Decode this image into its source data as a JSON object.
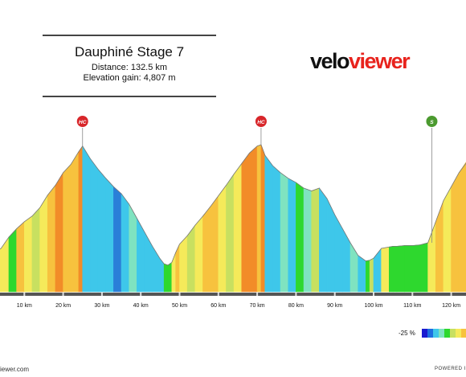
{
  "title": {
    "name": "Dauphiné Stage 7",
    "distance": "Distance: 132.5 km",
    "elevation": "Elevation gain: 4,807 m"
  },
  "logo": {
    "part1": "velo",
    "part2": "viewer"
  },
  "footer": {
    "left": "iewer.com",
    "right": "POWERED I"
  },
  "legend": {
    "min_label": "-25 %"
  },
  "colors": {
    "steep": "#f28c28",
    "hard": "#f7c23e",
    "moderate": "#f5ea5a",
    "easy": "#c8e060",
    "flat": "#2ed82e",
    "descent_light": "#7fe3c0",
    "descent": "#3ec7ea",
    "descent_steep": "#2a7fd8",
    "red": "#e02323"
  },
  "chart_data": {
    "type": "area",
    "xlabel": "",
    "ylabel": "",
    "xlim": [
      0,
      132.5
    ],
    "ticks": [
      "10 km",
      "20 km",
      "30 km",
      "40 km",
      "50 km",
      "60 km",
      "70 km",
      "80 km",
      "90 km",
      "100 km",
      "110 km",
      "120 km"
    ],
    "tick_values": [
      10,
      20,
      30,
      40,
      50,
      60,
      70,
      80,
      90,
      100,
      110,
      120
    ],
    "x": [
      0,
      4,
      6,
      8,
      10,
      12,
      14,
      16,
      18,
      20,
      22,
      24,
      25,
      27,
      29,
      31,
      33,
      35,
      37,
      39,
      41,
      43,
      45,
      46,
      47,
      48,
      49,
      50,
      52,
      54,
      56,
      58,
      60,
      62,
      64,
      66,
      68,
      70,
      71,
      72,
      74,
      76,
      78,
      80,
      82,
      84,
      86,
      88,
      90,
      92,
      94,
      96,
      98,
      99,
      100,
      102,
      104,
      105,
      106,
      108,
      110,
      112,
      114,
      116,
      118,
      120,
      122,
      124
    ],
    "elevation": [
      480,
      620,
      780,
      900,
      1000,
      1080,
      1200,
      1380,
      1520,
      1700,
      1820,
      2000,
      2080,
      1900,
      1750,
      1620,
      1500,
      1400,
      1250,
      1050,
      850,
      650,
      470,
      400,
      380,
      420,
      560,
      680,
      800,
      950,
      1080,
      1220,
      1370,
      1520,
      1680,
      1830,
      1980,
      2080,
      2100,
      1950,
      1800,
      1700,
      1620,
      1560,
      1480,
      1440,
      1480,
      1330,
      1100,
      900,
      700,
      520,
      440,
      450,
      480,
      620,
      640,
      650,
      650,
      660,
      660,
      670,
      700,
      1000,
      1300,
      1500,
      1700,
      1850
    ],
    "gradient_colors": [
      "moderate",
      "moderate",
      "flat",
      "hard",
      "moderate",
      "easy",
      "moderate",
      "hard",
      "steep",
      "hard",
      "hard",
      "steep",
      "descent",
      "descent",
      "descent",
      "descent",
      "descent_steep",
      "descent",
      "descent_light",
      "descent",
      "descent",
      "descent",
      "descent",
      "flat",
      "flat",
      "moderate",
      "hard",
      "moderate",
      "easy",
      "moderate",
      "hard",
      "hard",
      "moderate",
      "easy",
      "moderate",
      "steep",
      "steep",
      "hard",
      "steep",
      "descent",
      "descent",
      "descent_light",
      "descent",
      "flat",
      "descent_light",
      "easy",
      "descent",
      "descent",
      "descent",
      "descent",
      "descent_light",
      "descent",
      "flat",
      "easy",
      "descent",
      "moderate",
      "flat",
      "flat",
      "flat",
      "flat",
      "flat",
      "flat",
      "moderate",
      "hard",
      "moderate",
      "hard",
      "hard"
    ],
    "summits": [
      {
        "km": 25,
        "label": "HC",
        "color": "#d8262a"
      },
      {
        "km": 71,
        "label": "HC",
        "color": "#d8262a"
      },
      {
        "km": 115,
        "label": "S",
        "color": "#4b9a2f"
      }
    ],
    "legend_scale": [
      "#1a1ad0",
      "#1e6ee0",
      "#3ec7ea",
      "#7fe3c0",
      "#2ed82e",
      "#c8e060",
      "#f5ea5a",
      "#f7c23e",
      "#f28c28"
    ]
  }
}
